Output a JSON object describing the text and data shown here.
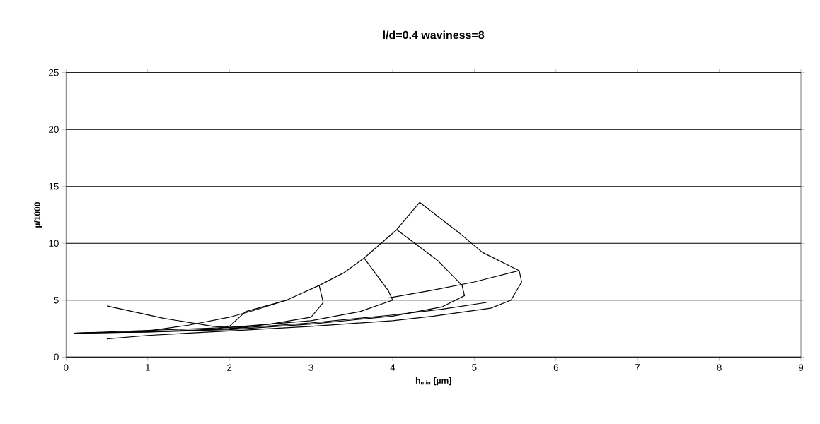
{
  "chart_data": {
    "type": "line",
    "title": "l/d=0.4 waviness=8",
    "xlabel": "h$_{min}$ [µm]",
    "ylabel": "µ/1000",
    "xlim": [
      0,
      9
    ],
    "xticks": [
      0,
      1,
      2,
      3,
      4,
      5,
      6,
      7,
      8,
      9
    ],
    "ylim": [
      0,
      25
    ],
    "yticks": [
      0,
      5,
      10,
      15,
      20,
      25
    ],
    "grid": "y",
    "marker": "none",
    "line_style": "solid",
    "series": [
      {
        "color": "#000000",
        "x": [
          1.0,
          1.5,
          2.0,
          2.3,
          2.7,
          3.1,
          3.4,
          3.65,
          4.05,
          4.33,
          4.8,
          5.1,
          5.55,
          5.58,
          5.45,
          5.2,
          4.5,
          4.0,
          3.0,
          2.0,
          1.0,
          0.5
        ],
        "values": [
          2.3,
          2.8,
          3.5,
          4.1,
          5.0,
          6.3,
          7.4,
          8.7,
          11.2,
          13.6,
          11.0,
          9.2,
          7.6,
          6.6,
          5.0,
          4.3,
          3.6,
          3.2,
          2.7,
          2.3,
          1.9,
          1.6
        ]
      },
      {
        "color": "#000000",
        "x": [
          3.1,
          3.15,
          3.0,
          2.5,
          2.0,
          1.5,
          1.0,
          0.1
        ],
        "values": [
          6.3,
          4.8,
          3.5,
          2.9,
          2.5,
          2.3,
          2.2,
          2.1
        ]
      },
      {
        "color": "#000000",
        "x": [
          3.65,
          3.95,
          4.0,
          3.6,
          3.0,
          2.0,
          0.1
        ],
        "values": [
          8.7,
          5.8,
          5.0,
          4.0,
          3.2,
          2.6,
          2.1
        ]
      },
      {
        "color": "#000000",
        "x": [
          4.05,
          4.55,
          4.85,
          4.88,
          4.6,
          4.0,
          3.0,
          2.0,
          0.1
        ],
        "values": [
          11.2,
          8.5,
          6.3,
          5.4,
          4.4,
          3.6,
          2.9,
          2.4,
          2.1
        ]
      },
      {
        "color": "#000000",
        "x": [
          0.5,
          1.2,
          1.8,
          2.0,
          2.2
        ],
        "values": [
          4.5,
          3.4,
          2.7,
          2.6,
          2.7
        ]
      },
      {
        "color": "#000000",
        "x": [
          1.8,
          2.0,
          2.2,
          2.7
        ],
        "values": [
          2.4,
          2.7,
          4.0,
          5.0
        ]
      },
      {
        "color": "#000000",
        "x": [
          3.95,
          4.5,
          5.0,
          5.55
        ],
        "values": [
          5.2,
          5.9,
          6.6,
          7.6
        ]
      },
      {
        "color": "#000000",
        "x": [
          0.1,
          1.0,
          2.0,
          3.0,
          4.0,
          4.6,
          5.15
        ],
        "values": [
          2.1,
          2.2,
          2.5,
          3.0,
          3.7,
          4.2,
          4.8
        ]
      }
    ]
  }
}
